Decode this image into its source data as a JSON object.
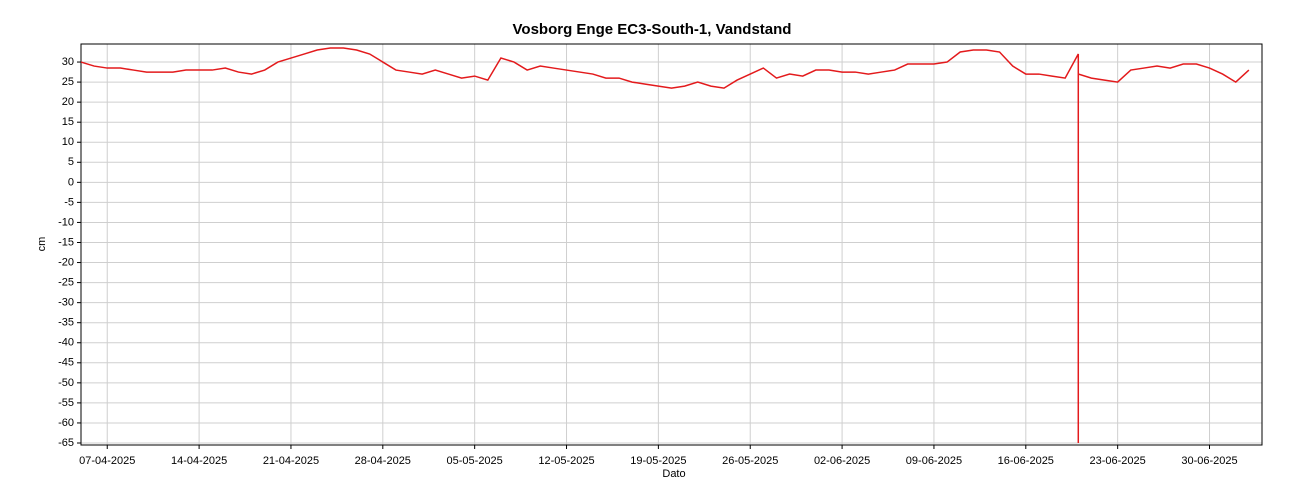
{
  "chart_data": {
    "type": "line",
    "title": "Vosborg Enge EC3-South-1, Vandstand",
    "x_label": "Dato",
    "y_label": "cm",
    "x": [
      "2025-04-05",
      "2025-04-06",
      "2025-04-07",
      "2025-04-08",
      "2025-04-09",
      "2025-04-10",
      "2025-04-11",
      "2025-04-12",
      "2025-04-13",
      "2025-04-14",
      "2025-04-15",
      "2025-04-16",
      "2025-04-17",
      "2025-04-18",
      "2025-04-19",
      "2025-04-20",
      "2025-04-21",
      "2025-04-22",
      "2025-04-23",
      "2025-04-24",
      "2025-04-25",
      "2025-04-26",
      "2025-04-27",
      "2025-04-28",
      "2025-04-29",
      "2025-04-30",
      "2025-05-01",
      "2025-05-02",
      "2025-05-03",
      "2025-05-04",
      "2025-05-05",
      "2025-05-06",
      "2025-05-07",
      "2025-05-08",
      "2025-05-09",
      "2025-05-10",
      "2025-05-11",
      "2025-05-12",
      "2025-05-13",
      "2025-05-14",
      "2025-05-15",
      "2025-05-16",
      "2025-05-17",
      "2025-05-18",
      "2025-05-19",
      "2025-05-20",
      "2025-05-21",
      "2025-05-22",
      "2025-05-23",
      "2025-05-24",
      "2025-05-25",
      "2025-05-26",
      "2025-05-27",
      "2025-05-28",
      "2025-05-29",
      "2025-05-30",
      "2025-05-31",
      "2025-06-01",
      "2025-06-02",
      "2025-06-03",
      "2025-06-04",
      "2025-06-05",
      "2025-06-06",
      "2025-06-07",
      "2025-06-08",
      "2025-06-09",
      "2025-06-10",
      "2025-06-11",
      "2025-06-12",
      "2025-06-13",
      "2025-06-14",
      "2025-06-15",
      "2025-06-16",
      "2025-06-17",
      "2025-06-18",
      "2025-06-19",
      "2025-06-20",
      "2025-06-20",
      "2025-06-20",
      "2025-06-21",
      "2025-06-22",
      "2025-06-23",
      "2025-06-24",
      "2025-06-25",
      "2025-06-26",
      "2025-06-27",
      "2025-06-28",
      "2025-06-29",
      "2025-06-30",
      "2025-07-01",
      "2025-07-02",
      "2025-07-03"
    ],
    "series": [
      {
        "name": "Vandstand",
        "color": "#e31a1c",
        "values": [
          30,
          29,
          28.5,
          28.5,
          28,
          27.5,
          27.5,
          27.5,
          28,
          28,
          28,
          28.5,
          27.5,
          27,
          28,
          30,
          31,
          32,
          33,
          33.5,
          33.5,
          33,
          32,
          30,
          28,
          27.5,
          27,
          28,
          27,
          26,
          26.5,
          25.5,
          31,
          30,
          28,
          29,
          28.5,
          28,
          27.5,
          27,
          26,
          26,
          25,
          24.5,
          24,
          23.5,
          24,
          25,
          24,
          23.5,
          25.5,
          27,
          28.5,
          26,
          27,
          26.5,
          28,
          28,
          27.5,
          27.5,
          27,
          27.5,
          28,
          29.5,
          29.5,
          29.5,
          30,
          32.5,
          33,
          33,
          32.5,
          29,
          27,
          27,
          26.5,
          26,
          32,
          -65,
          27,
          26,
          25.5,
          25,
          28,
          28.5,
          29,
          28.5,
          29.5,
          29.5,
          28.5,
          27,
          25,
          28
        ]
      }
    ],
    "xlim": [
      "2025-04-05",
      "2025-07-04"
    ],
    "xticks": [
      {
        "value": "2025-04-07",
        "label": "07-04-2025"
      },
      {
        "value": "2025-04-14",
        "label": "14-04-2025"
      },
      {
        "value": "2025-04-21",
        "label": "21-04-2025"
      },
      {
        "value": "2025-04-28",
        "label": "28-04-2025"
      },
      {
        "value": "2025-05-05",
        "label": "05-05-2025"
      },
      {
        "value": "2025-05-12",
        "label": "12-05-2025"
      },
      {
        "value": "2025-05-19",
        "label": "19-05-2025"
      },
      {
        "value": "2025-05-26",
        "label": "26-05-2025"
      },
      {
        "value": "2025-06-02",
        "label": "02-06-2025"
      },
      {
        "value": "2025-06-09",
        "label": "09-06-2025"
      },
      {
        "value": "2025-06-16",
        "label": "16-06-2025"
      },
      {
        "value": "2025-06-23",
        "label": "23-06-2025"
      },
      {
        "value": "2025-06-30",
        "label": "30-06-2025"
      }
    ],
    "ylim": [
      -65.5,
      34.5
    ],
    "yticks": [
      30,
      25,
      20,
      15,
      10,
      5,
      0,
      -5,
      -10,
      -15,
      -20,
      -25,
      -30,
      -35,
      -40,
      -45,
      -50,
      -55,
      -60,
      -65
    ],
    "grid": true
  }
}
